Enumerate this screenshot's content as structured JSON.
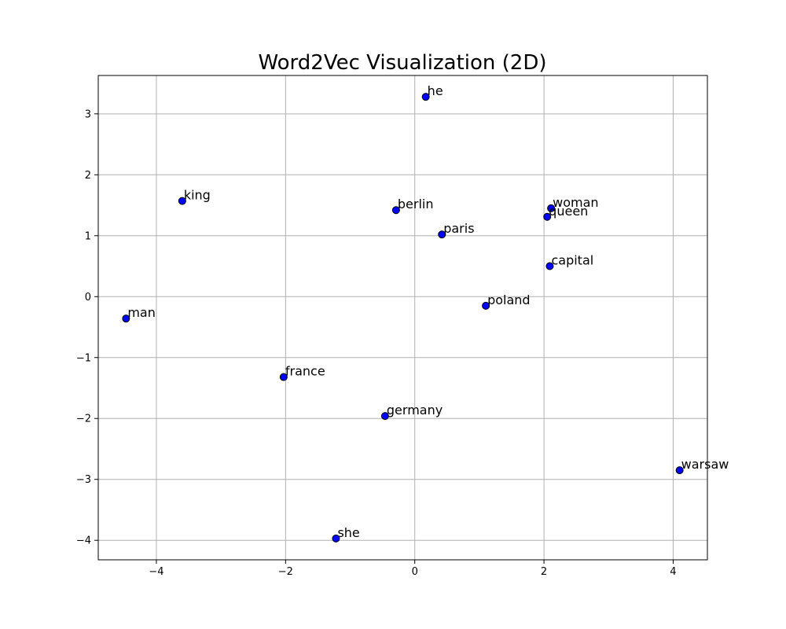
{
  "chart_data": {
    "type": "scatter",
    "title": "Word2Vec Visualization (2D)",
    "xlabel": "",
    "ylabel": "",
    "xlim": [
      -4.9,
      4.53
    ],
    "ylim": [
      -4.32,
      3.63
    ],
    "xticks": [
      -4,
      -2,
      0,
      2,
      4
    ],
    "yticks": [
      -4,
      -3,
      -2,
      -1,
      0,
      1,
      2,
      3
    ],
    "xtick_labels": [
      "−4",
      "−2",
      "0",
      "2",
      "4"
    ],
    "ytick_labels": [
      "−4",
      "−3",
      "−2",
      "−1",
      "0",
      "1",
      "2",
      "3"
    ],
    "grid": true,
    "marker_color": "#0000ff",
    "marker_edge_color": "#000000",
    "points": [
      {
        "label": "he",
        "x": 0.17,
        "y": 3.28
      },
      {
        "label": "king",
        "x": -3.6,
        "y": 1.57
      },
      {
        "label": "berlin",
        "x": -0.29,
        "y": 1.42
      },
      {
        "label": "woman",
        "x": 2.11,
        "y": 1.45
      },
      {
        "label": "queen",
        "x": 2.05,
        "y": 1.31
      },
      {
        "label": "paris",
        "x": 0.42,
        "y": 1.02
      },
      {
        "label": "capital",
        "x": 2.09,
        "y": 0.5
      },
      {
        "label": "poland",
        "x": 1.1,
        "y": -0.15
      },
      {
        "label": "man",
        "x": -4.47,
        "y": -0.36
      },
      {
        "label": "france",
        "x": -2.03,
        "y": -1.32
      },
      {
        "label": "germany",
        "x": -0.46,
        "y": -1.96
      },
      {
        "label": "warsaw",
        "x": 4.1,
        "y": -2.85
      },
      {
        "label": "she",
        "x": -1.22,
        "y": -3.97
      }
    ]
  }
}
